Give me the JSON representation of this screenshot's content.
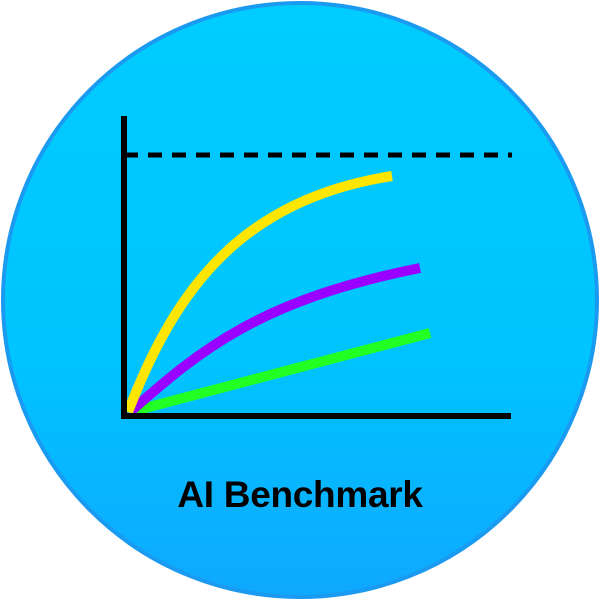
{
  "icon": {
    "name": "benchmark-chart-icon",
    "title": "AI Benchmark"
  },
  "colors": {
    "circle_top": "#00ccff",
    "circle_bottom": "#0fa8ff",
    "circle_border": "#1a9af0",
    "axis": "#000000",
    "dashed_line": "#000000",
    "curve_yellow": "#ffe600",
    "curve_purple": "#9900ff",
    "curve_green": "#22ff22"
  }
}
